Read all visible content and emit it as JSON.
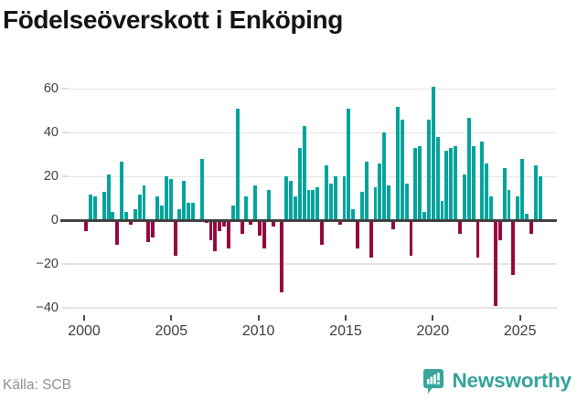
{
  "title": "Födelseöverskott i Enköping",
  "source": "Källa: SCB",
  "brand": {
    "name": "Newsworthy",
    "icon": "newsworthy-badge-icon"
  },
  "colors": {
    "positive_bar": "#01a49b",
    "negative_bar": "#98063e",
    "gridline": "#e4e4e4",
    "zero_line": "#3f3f3f",
    "axis_text": "#3d3d3d",
    "title_text": "#141414",
    "source_text": "#909090",
    "brand_teal": "#35a39b"
  },
  "chart_data": {
    "type": "bar",
    "title": "Födelseöverskott i Enköping",
    "frequency": "quarterly",
    "x_start": "2000-Q1",
    "x_end": "2025-Q3",
    "x_tick_years": [
      2000,
      2005,
      2010,
      2015,
      2020,
      2025
    ],
    "y_ticks": [
      60,
      40,
      20,
      0,
      -20,
      -40
    ],
    "ylim": [
      -45,
      65
    ],
    "grid": "horizontal",
    "legend": "none",
    "xlabel": "",
    "ylabel": "",
    "values": [
      -5,
      12,
      11,
      0,
      13,
      21,
      4,
      -11,
      27,
      4,
      -2,
      5,
      12,
      16,
      -10,
      -8,
      11,
      7,
      20,
      19,
      -16,
      5,
      18,
      8,
      8,
      0,
      28,
      -1,
      -9,
      -14,
      -5,
      -3,
      -13,
      7,
      51,
      -6,
      11,
      -2,
      16,
      -7,
      -13,
      14,
      -3,
      0,
      -33,
      20,
      18,
      11,
      33,
      43,
      14,
      14,
      15,
      -11,
      25,
      17,
      20,
      -2,
      20,
      51,
      5,
      -13,
      13,
      27,
      -17,
      15,
      26,
      40,
      16,
      -4,
      52,
      46,
      17,
      -16,
      33,
      34,
      4,
      46,
      61,
      38,
      9,
      32,
      33,
      34,
      -6,
      21,
      47,
      34,
      -17,
      36,
      26,
      11,
      -39,
      -9,
      24,
      14,
      -25,
      11,
      28,
      3,
      -6,
      25,
      20
    ],
    "positive_color": "#01a49b",
    "negative_color": "#98063e"
  }
}
